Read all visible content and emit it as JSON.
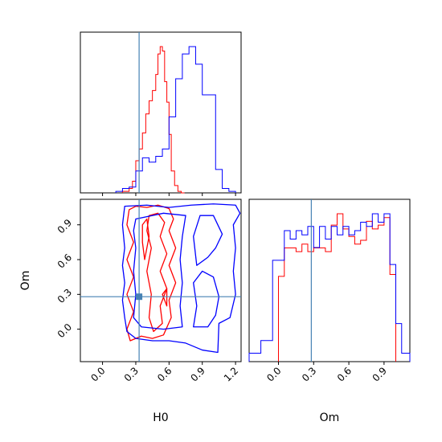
{
  "chart_data": [
    {
      "panel": "H0 marginal",
      "type": "histogram",
      "xlim": [
        -0.2,
        1.25
      ],
      "xticks": [
        0.0,
        0.3,
        0.6,
        0.9,
        1.2
      ],
      "truth": 0.33,
      "series": [
        {
          "color": "#ff0000",
          "edges": [
            0.18,
            0.24,
            0.27,
            0.3,
            0.33,
            0.36,
            0.39,
            0.42,
            0.45,
            0.48,
            0.5,
            0.52,
            0.54,
            0.56,
            0.58,
            0.6,
            0.62,
            0.65,
            0.68,
            0.71,
            0.74
          ],
          "counts": [
            1,
            3,
            8,
            22,
            30,
            41,
            54,
            63,
            70,
            81,
            95,
            100,
            97,
            76,
            62,
            40,
            15,
            5,
            1,
            0
          ]
        },
        {
          "color": "#0000ff",
          "edges": [
            0.12,
            0.18,
            0.24,
            0.3,
            0.36,
            0.42,
            0.48,
            0.54,
            0.6,
            0.66,
            0.72,
            0.78,
            0.84,
            0.9,
            0.96,
            1.02,
            1.08,
            1.14,
            1.2
          ],
          "counts": [
            1,
            3,
            4,
            15,
            24,
            21,
            25,
            30,
            52,
            78,
            95,
            100,
            88,
            67,
            67,
            16,
            3,
            1
          ]
        }
      ]
    },
    {
      "panel": "Om marginal",
      "type": "histogram",
      "xlim": [
        -0.25,
        1.12
      ],
      "xticks": [
        0.0,
        0.3,
        0.6,
        0.9
      ],
      "xlabel": "Om",
      "truth": 0.28,
      "series": [
        {
          "color": "#ff0000",
          "edges": [
            0.0,
            0.05,
            0.1,
            0.15,
            0.2,
            0.25,
            0.3,
            0.35,
            0.4,
            0.45,
            0.5,
            0.55,
            0.6,
            0.65,
            0.7,
            0.75,
            0.8,
            0.85,
            0.9,
            0.95,
            1.0
          ],
          "counts": [
            45,
            60,
            60,
            58,
            62,
            58,
            60,
            60,
            58,
            72,
            78,
            70,
            66,
            62,
            64,
            74,
            70,
            72,
            76,
            46
          ]
        },
        {
          "color": "#0000ff",
          "edges": [
            -0.25,
            -0.15,
            -0.05,
            0.05,
            0.1,
            0.15,
            0.2,
            0.25,
            0.3,
            0.35,
            0.4,
            0.45,
            0.5,
            0.55,
            0.6,
            0.65,
            0.7,
            0.75,
            0.8,
            0.85,
            0.9,
            0.95,
            1.0,
            1.05,
            1.12
          ],
          "counts": [
            4,
            10,
            48,
            62,
            58,
            62,
            60,
            64,
            54,
            64,
            58,
            64,
            60,
            64,
            60,
            62,
            66,
            64,
            70,
            66,
            70,
            46,
            18,
            4
          ]
        }
      ]
    },
    {
      "panel": "H0 vs Om",
      "type": "contour",
      "xlim": [
        -0.2,
        1.25
      ],
      "ylim": [
        -0.28,
        1.12
      ],
      "xticks": [
        0.0,
        0.3,
        0.6,
        0.9,
        1.2
      ],
      "yticks": [
        0.0,
        0.3,
        0.6,
        0.9
      ],
      "xlabel": "H0",
      "ylabel": "Om",
      "truth": {
        "x": 0.33,
        "y": 0.28
      },
      "contours": [
        {
          "color": "#ff0000",
          "paths": [
            [
              [
                0.24,
                1.03
              ],
              [
                0.3,
                1.06
              ],
              [
                0.4,
                1.05
              ],
              [
                0.5,
                1.07
              ],
              [
                0.6,
                1.04
              ],
              [
                0.64,
                0.95
              ],
              [
                0.6,
                0.85
              ],
              [
                0.66,
                0.7
              ],
              [
                0.6,
                0.55
              ],
              [
                0.66,
                0.4
              ],
              [
                0.6,
                0.25
              ],
              [
                0.62,
                0.1
              ],
              [
                0.55,
                -0.05
              ],
              [
                0.45,
                -0.08
              ],
              [
                0.35,
                -0.06
              ],
              [
                0.25,
                -0.1
              ],
              [
                0.22,
                0.0
              ],
              [
                0.28,
                0.15
              ],
              [
                0.22,
                0.3
              ],
              [
                0.28,
                0.45
              ],
              [
                0.22,
                0.6
              ],
              [
                0.28,
                0.75
              ],
              [
                0.22,
                0.9
              ],
              [
                0.24,
                1.03
              ]
            ],
            [
              [
                0.42,
                0.98
              ],
              [
                0.5,
                1.0
              ],
              [
                0.56,
                0.92
              ],
              [
                0.52,
                0.8
              ],
              [
                0.58,
                0.65
              ],
              [
                0.52,
                0.5
              ],
              [
                0.58,
                0.35
              ],
              [
                0.52,
                0.2
              ],
              [
                0.54,
                0.05
              ],
              [
                0.46,
                -0.02
              ],
              [
                0.42,
                0.1
              ],
              [
                0.44,
                0.3
              ],
              [
                0.4,
                0.5
              ],
              [
                0.44,
                0.7
              ],
              [
                0.4,
                0.85
              ],
              [
                0.42,
                0.98
              ]
            ],
            [
              [
                0.36,
                0.9
              ],
              [
                0.4,
                0.95
              ],
              [
                0.42,
                0.8
              ],
              [
                0.38,
                0.6
              ],
              [
                0.36,
                0.75
              ],
              [
                0.36,
                0.9
              ]
            ],
            [
              [
                0.54,
                0.3
              ],
              [
                0.58,
                0.35
              ],
              [
                0.58,
                0.2
              ],
              [
                0.54,
                0.3
              ]
            ]
          ]
        },
        {
          "color": "#0000ff",
          "paths": [
            [
              [
                0.2,
                1.06
              ],
              [
                0.4,
                1.07
              ],
              [
                0.6,
                1.05
              ],
              [
                0.8,
                1.07
              ],
              [
                1.0,
                1.08
              ],
              [
                1.2,
                1.07
              ],
              [
                1.24,
                1.0
              ],
              [
                1.18,
                0.9
              ],
              [
                1.2,
                0.7
              ],
              [
                1.18,
                0.5
              ],
              [
                1.2,
                0.3
              ],
              [
                1.15,
                0.1
              ],
              [
                1.05,
                0.05
              ],
              [
                1.04,
                -0.2
              ],
              [
                0.9,
                -0.18
              ],
              [
                0.75,
                -0.12
              ],
              [
                0.6,
                -0.1
              ],
              [
                0.45,
                -0.1
              ],
              [
                0.3,
                -0.08
              ],
              [
                0.22,
                -0.02
              ],
              [
                0.2,
                0.1
              ],
              [
                0.18,
                0.25
              ],
              [
                0.2,
                0.4
              ],
              [
                0.18,
                0.55
              ],
              [
                0.2,
                0.7
              ],
              [
                0.18,
                0.9
              ],
              [
                0.2,
                1.06
              ]
            ],
            [
              [
                0.3,
                0.95
              ],
              [
                0.55,
                1.0
              ],
              [
                0.75,
                0.98
              ],
              [
                0.72,
                0.8
              ],
              [
                0.7,
                0.6
              ],
              [
                0.72,
                0.4
              ],
              [
                0.7,
                0.2
              ],
              [
                0.72,
                0.02
              ],
              [
                0.55,
                0.0
              ],
              [
                0.35,
                0.02
              ],
              [
                0.28,
                0.1
              ],
              [
                0.3,
                0.3
              ],
              [
                0.28,
                0.5
              ],
              [
                0.3,
                0.7
              ],
              [
                0.28,
                0.85
              ],
              [
                0.3,
                0.95
              ]
            ],
            [
              [
                0.85,
                0.55
              ],
              [
                0.95,
                0.62
              ],
              [
                1.02,
                0.7
              ],
              [
                1.08,
                0.82
              ],
              [
                1.0,
                0.98
              ],
              [
                0.88,
                0.98
              ],
              [
                0.82,
                0.8
              ],
              [
                0.85,
                0.55
              ]
            ],
            [
              [
                0.82,
                0.02
              ],
              [
                0.95,
                0.02
              ],
              [
                1.02,
                0.12
              ],
              [
                1.05,
                0.28
              ],
              [
                1.0,
                0.45
              ],
              [
                0.9,
                0.5
              ],
              [
                0.82,
                0.4
              ],
              [
                0.85,
                0.2
              ],
              [
                0.82,
                0.02
              ]
            ]
          ]
        }
      ]
    }
  ]
}
